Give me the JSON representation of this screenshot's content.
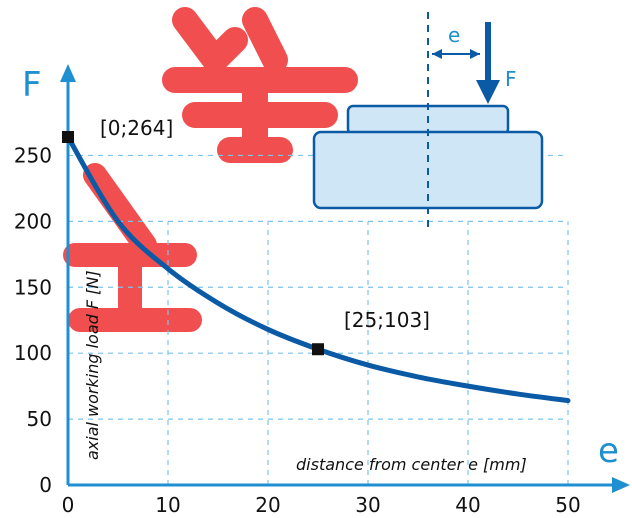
{
  "chart_data": {
    "type": "line",
    "x_axis_symbol": "e",
    "y_axis_symbol": "F",
    "xlabel": "distance from center e [mm]",
    "ylabel": "axial working load F  [N]",
    "xlim": [
      0,
      50
    ],
    "ylim": [
      0,
      264
    ],
    "x_ticks": [
      0,
      10,
      20,
      30,
      40,
      50
    ],
    "y_ticks": [
      0,
      50,
      100,
      150,
      200,
      250
    ],
    "grid": true,
    "series": [
      {
        "x": [
          0,
          5,
          10,
          15,
          20,
          25,
          30,
          35,
          40,
          45,
          50
        ],
        "y": [
          264,
          200,
          164,
          138,
          118,
          103,
          91,
          82,
          75,
          69,
          64
        ]
      }
    ],
    "highlighted_points": [
      {
        "x": 0,
        "y": 264,
        "label": "[0;264]"
      },
      {
        "x": 25,
        "y": 103,
        "label": "[25;103]"
      }
    ],
    "inset": {
      "offset_label": "e",
      "force_label": "F"
    },
    "colors": {
      "curve": "#0a5aa5",
      "axis": "#1e8fd0",
      "grid": "#7cc4ec",
      "inset_fill": "#cfe6f7",
      "inset_stroke": "#0a5aa5",
      "marker": "#111111",
      "watermark": "#f03c3c"
    }
  }
}
